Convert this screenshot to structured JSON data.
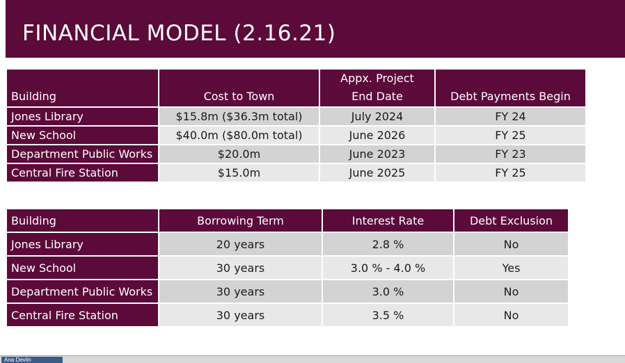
{
  "slide": {
    "title": "FINANCIAL MODEL (2.16.21)"
  },
  "table1": {
    "headers": {
      "building": "Building",
      "cost": "Cost to Town",
      "end_date_line1": "Appx. Project",
      "end_date_line2": "End Date",
      "debt_payments": "Debt Payments Begin"
    },
    "rows": [
      {
        "building": "Jones Library",
        "cost": "$15.8m ($36.3m total)",
        "end_date": "July 2024",
        "debt_payments": "FY 24"
      },
      {
        "building": "New School",
        "cost": "$40.0m ($80.0m total)",
        "end_date": "June 2026",
        "debt_payments": "FY 25"
      },
      {
        "building": "Department Public Works",
        "cost": "$20.0m",
        "end_date": "June 2023",
        "debt_payments": "FY 23"
      },
      {
        "building": "Central Fire Station",
        "cost": "$15.0m",
        "end_date": "June 2025",
        "debt_payments": "FY 25"
      }
    ]
  },
  "table2": {
    "headers": {
      "building": "Building",
      "term": "Borrowing Term",
      "rate": "Interest Rate",
      "exclusion": "Debt Exclusion"
    },
    "rows": [
      {
        "building": "Jones Library",
        "term": "20 years",
        "rate": "2.8 %",
        "exclusion": "No"
      },
      {
        "building": "New School",
        "term": "30 years",
        "rate": "3.0 % - 4.0 %",
        "exclusion": "Yes"
      },
      {
        "building": "Department Public Works",
        "term": "30 years",
        "rate": "3.0 %",
        "exclusion": "No"
      },
      {
        "building": "Central Fire Station",
        "term": "30 years",
        "rate": "3.5 %",
        "exclusion": "No"
      }
    ]
  },
  "taskbar": {
    "item_label": "Ana Devlin"
  },
  "colors": {
    "header_bg": "#5c0a3a",
    "row_odd": "#d3d3d3",
    "row_even": "#e8e8e8"
  }
}
